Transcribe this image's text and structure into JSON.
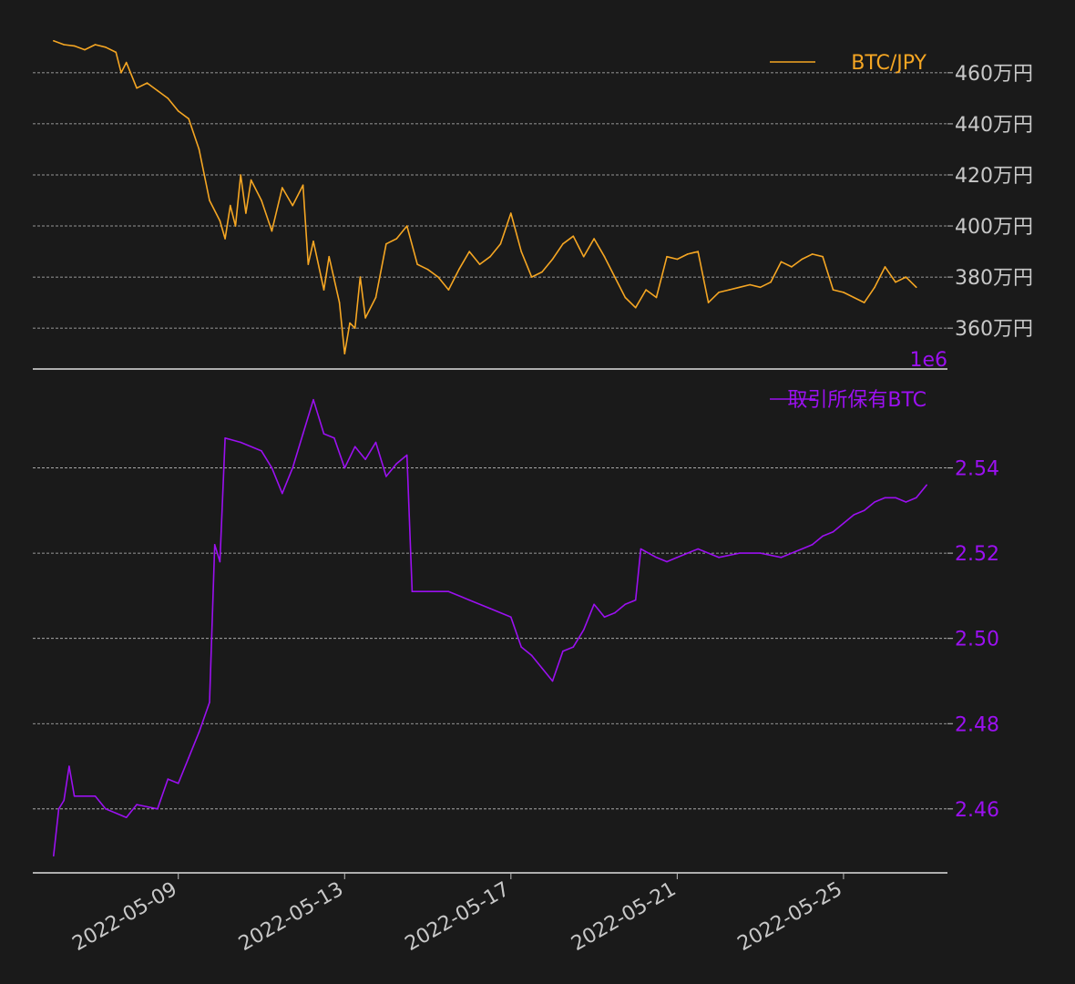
{
  "chart_data": [
    {
      "type": "line",
      "panel": "top",
      "colors": {
        "series": "#f5a623",
        "text": "#c8c8c8",
        "background": "#1a1a1a"
      },
      "series": [
        {
          "name": "BTC/JPY",
          "points": [
            [
              "2022-05-06 00:00",
              4725000
            ],
            [
              "2022-05-06 06:00",
              4710000
            ],
            [
              "2022-05-06 12:00",
              4705000
            ],
            [
              "2022-05-06 18:00",
              4690000
            ],
            [
              "2022-05-07 00:00",
              4710000
            ],
            [
              "2022-05-07 06:00",
              4700000
            ],
            [
              "2022-05-07 12:00",
              4680000
            ],
            [
              "2022-05-07 15:00",
              4600000
            ],
            [
              "2022-05-07 18:00",
              4640000
            ],
            [
              "2022-05-08 00:00",
              4540000
            ],
            [
              "2022-05-08 06:00",
              4560000
            ],
            [
              "2022-05-08 12:00",
              4530000
            ],
            [
              "2022-05-08 18:00",
              4500000
            ],
            [
              "2022-05-09 00:00",
              4450000
            ],
            [
              "2022-05-09 06:00",
              4420000
            ],
            [
              "2022-05-09 12:00",
              4300000
            ],
            [
              "2022-05-09 18:00",
              4100000
            ],
            [
              "2022-05-10 00:00",
              4020000
            ],
            [
              "2022-05-10 03:00",
              3950000
            ],
            [
              "2022-05-10 06:00",
              4080000
            ],
            [
              "2022-05-10 09:00",
              4000000
            ],
            [
              "2022-05-10 12:00",
              4200000
            ],
            [
              "2022-05-10 15:00",
              4050000
            ],
            [
              "2022-05-10 18:00",
              4180000
            ],
            [
              "2022-05-11 00:00",
              4100000
            ],
            [
              "2022-05-11 06:00",
              3980000
            ],
            [
              "2022-05-11 12:00",
              4150000
            ],
            [
              "2022-05-11 18:00",
              4080000
            ],
            [
              "2022-05-12 00:00",
              4160000
            ],
            [
              "2022-05-12 03:00",
              3850000
            ],
            [
              "2022-05-12 06:00",
              3940000
            ],
            [
              "2022-05-12 12:00",
              3750000
            ],
            [
              "2022-05-12 15:00",
              3880000
            ],
            [
              "2022-05-12 21:00",
              3700000
            ],
            [
              "2022-05-13 00:00",
              3500000
            ],
            [
              "2022-05-13 03:00",
              3620000
            ],
            [
              "2022-05-13 06:00",
              3600000
            ],
            [
              "2022-05-13 09:00",
              3800000
            ],
            [
              "2022-05-13 12:00",
              3640000
            ],
            [
              "2022-05-13 18:00",
              3720000
            ],
            [
              "2022-05-14 00:00",
              3930000
            ],
            [
              "2022-05-14 06:00",
              3950000
            ],
            [
              "2022-05-14 12:00",
              4000000
            ],
            [
              "2022-05-14 18:00",
              3850000
            ],
            [
              "2022-05-15 00:00",
              3830000
            ],
            [
              "2022-05-15 06:00",
              3800000
            ],
            [
              "2022-05-15 12:00",
              3750000
            ],
            [
              "2022-05-15 18:00",
              3830000
            ],
            [
              "2022-05-16 00:00",
              3900000
            ],
            [
              "2022-05-16 06:00",
              3850000
            ],
            [
              "2022-05-16 12:00",
              3880000
            ],
            [
              "2022-05-16 18:00",
              3930000
            ],
            [
              "2022-05-17 00:00",
              4050000
            ],
            [
              "2022-05-17 06:00",
              3900000
            ],
            [
              "2022-05-17 12:00",
              3800000
            ],
            [
              "2022-05-17 18:00",
              3820000
            ],
            [
              "2022-05-18 00:00",
              3870000
            ],
            [
              "2022-05-18 06:00",
              3930000
            ],
            [
              "2022-05-18 12:00",
              3960000
            ],
            [
              "2022-05-18 18:00",
              3880000
            ],
            [
              "2022-05-19 00:00",
              3950000
            ],
            [
              "2022-05-19 06:00",
              3880000
            ],
            [
              "2022-05-19 12:00",
              3800000
            ],
            [
              "2022-05-19 18:00",
              3720000
            ],
            [
              "2022-05-20 00:00",
              3680000
            ],
            [
              "2022-05-20 06:00",
              3750000
            ],
            [
              "2022-05-20 12:00",
              3720000
            ],
            [
              "2022-05-20 18:00",
              3880000
            ],
            [
              "2022-05-21 00:00",
              3870000
            ],
            [
              "2022-05-21 06:00",
              3890000
            ],
            [
              "2022-05-21 12:00",
              3900000
            ],
            [
              "2022-05-21 18:00",
              3700000
            ],
            [
              "2022-05-22 00:00",
              3740000
            ],
            [
              "2022-05-22 06:00",
              3750000
            ],
            [
              "2022-05-22 12:00",
              3760000
            ],
            [
              "2022-05-22 18:00",
              3770000
            ],
            [
              "2022-05-23 00:00",
              3760000
            ],
            [
              "2022-05-23 06:00",
              3780000
            ],
            [
              "2022-05-23 12:00",
              3860000
            ],
            [
              "2022-05-23 18:00",
              3840000
            ],
            [
              "2022-05-24 00:00",
              3870000
            ],
            [
              "2022-05-24 06:00",
              3890000
            ],
            [
              "2022-05-24 12:00",
              3880000
            ],
            [
              "2022-05-24 18:00",
              3750000
            ],
            [
              "2022-05-25 00:00",
              3740000
            ],
            [
              "2022-05-25 06:00",
              3720000
            ],
            [
              "2022-05-25 12:00",
              3700000
            ],
            [
              "2022-05-25 18:00",
              3760000
            ],
            [
              "2022-05-26 00:00",
              3840000
            ],
            [
              "2022-05-26 06:00",
              3780000
            ],
            [
              "2022-05-26 12:00",
              3800000
            ],
            [
              "2022-05-26 18:00",
              3760000
            ]
          ]
        }
      ],
      "y_axis": {
        "position": "right",
        "ticks": [
          3600000,
          3800000,
          4000000,
          4200000,
          4400000,
          4600000
        ],
        "tick_labels": [
          "360万円",
          "380万円",
          "400万円",
          "420万円",
          "440万円",
          "460万円"
        ],
        "ylim": [
          3440000,
          4760000
        ]
      },
      "grid": true,
      "legend": "top-right"
    },
    {
      "type": "line",
      "panel": "bottom",
      "colors": {
        "series": "#9b10f0",
        "text": "#9b10f0",
        "background": "#1a1a1a"
      },
      "series": [
        {
          "name": "取引所保有BTC",
          "points": [
            [
              "2022-05-06 00:00",
              2449000
            ],
            [
              "2022-05-06 03:00",
              2460000
            ],
            [
              "2022-05-06 06:00",
              2462000
            ],
            [
              "2022-05-06 09:00",
              2470000
            ],
            [
              "2022-05-06 12:00",
              2463000
            ],
            [
              "2022-05-07 00:00",
              2463000
            ],
            [
              "2022-05-07 06:00",
              2460000
            ],
            [
              "2022-05-07 18:00",
              2458000
            ],
            [
              "2022-05-08 00:00",
              2461000
            ],
            [
              "2022-05-08 12:00",
              2460000
            ],
            [
              "2022-05-08 18:00",
              2467000
            ],
            [
              "2022-05-09 00:00",
              2466000
            ],
            [
              "2022-05-09 06:00",
              2472000
            ],
            [
              "2022-05-09 12:00",
              2478000
            ],
            [
              "2022-05-09 18:00",
              2485000
            ],
            [
              "2022-05-09 21:00",
              2522000
            ],
            [
              "2022-05-10 00:00",
              2518000
            ],
            [
              "2022-05-10 03:00",
              2547000
            ],
            [
              "2022-05-10 12:00",
              2546000
            ],
            [
              "2022-05-11 00:00",
              2544000
            ],
            [
              "2022-05-11 06:00",
              2540000
            ],
            [
              "2022-05-11 12:00",
              2534000
            ],
            [
              "2022-05-11 18:00",
              2540000
            ],
            [
              "2022-05-12 00:00",
              2548000
            ],
            [
              "2022-05-12 06:00",
              2556000
            ],
            [
              "2022-05-12 12:00",
              2548000
            ],
            [
              "2022-05-12 18:00",
              2547000
            ],
            [
              "2022-05-13 00:00",
              2540000
            ],
            [
              "2022-05-13 06:00",
              2545000
            ],
            [
              "2022-05-13 12:00",
              2542000
            ],
            [
              "2022-05-13 18:00",
              2546000
            ],
            [
              "2022-05-14 00:00",
              2538000
            ],
            [
              "2022-05-14 06:00",
              2541000
            ],
            [
              "2022-05-14 12:00",
              2543000
            ],
            [
              "2022-05-14 15:00",
              2511000
            ],
            [
              "2022-05-15 00:00",
              2511000
            ],
            [
              "2022-05-15 12:00",
              2511000
            ],
            [
              "2022-05-16 00:00",
              2509000
            ],
            [
              "2022-05-16 12:00",
              2507000
            ],
            [
              "2022-05-17 00:00",
              2505000
            ],
            [
              "2022-05-17 06:00",
              2498000
            ],
            [
              "2022-05-17 12:00",
              2496000
            ],
            [
              "2022-05-17 18:00",
              2493000
            ],
            [
              "2022-05-18 00:00",
              2490000
            ],
            [
              "2022-05-18 06:00",
              2497000
            ],
            [
              "2022-05-18 12:00",
              2498000
            ],
            [
              "2022-05-18 18:00",
              2502000
            ],
            [
              "2022-05-19 00:00",
              2508000
            ],
            [
              "2022-05-19 06:00",
              2505000
            ],
            [
              "2022-05-19 12:00",
              2506000
            ],
            [
              "2022-05-19 18:00",
              2508000
            ],
            [
              "2022-05-20 00:00",
              2509000
            ],
            [
              "2022-05-20 03:00",
              2521000
            ],
            [
              "2022-05-20 12:00",
              2519000
            ],
            [
              "2022-05-20 18:00",
              2518000
            ],
            [
              "2022-05-21 00:00",
              2519000
            ],
            [
              "2022-05-21 06:00",
              2520000
            ],
            [
              "2022-05-21 12:00",
              2521000
            ],
            [
              "2022-05-22 00:00",
              2519000
            ],
            [
              "2022-05-22 12:00",
              2520000
            ],
            [
              "2022-05-23 00:00",
              2520000
            ],
            [
              "2022-05-23 12:00",
              2519000
            ],
            [
              "2022-05-24 00:00",
              2521000
            ],
            [
              "2022-05-24 06:00",
              2522000
            ],
            [
              "2022-05-24 12:00",
              2524000
            ],
            [
              "2022-05-24 18:00",
              2525000
            ],
            [
              "2022-05-25 00:00",
              2527000
            ],
            [
              "2022-05-25 06:00",
              2529000
            ],
            [
              "2022-05-25 12:00",
              2530000
            ],
            [
              "2022-05-25 18:00",
              2532000
            ],
            [
              "2022-05-26 00:00",
              2533000
            ],
            [
              "2022-05-26 06:00",
              2533000
            ],
            [
              "2022-05-26 12:00",
              2532000
            ],
            [
              "2022-05-26 18:00",
              2533000
            ],
            [
              "2022-05-27 00:00",
              2536000
            ]
          ]
        }
      ],
      "y_axis": {
        "position": "right",
        "offset_label": "1e6",
        "ticks": [
          2460000,
          2480000,
          2500000,
          2520000,
          2540000
        ],
        "tick_labels": [
          "2.46",
          "2.48",
          "2.50",
          "2.52",
          "2.54"
        ],
        "ylim": [
          2445000,
          2560000
        ]
      },
      "x_axis": {
        "range": [
          "2022-05-05 12:00",
          "2022-05-27 12:00"
        ],
        "ticks": [
          "2022-05-09",
          "2022-05-13",
          "2022-05-17",
          "2022-05-21",
          "2022-05-25"
        ],
        "tick_labels": [
          "2022-05-09",
          "2022-05-13",
          "2022-05-17",
          "2022-05-21",
          "2022-05-25"
        ]
      },
      "grid": true,
      "legend": "top-right"
    }
  ]
}
